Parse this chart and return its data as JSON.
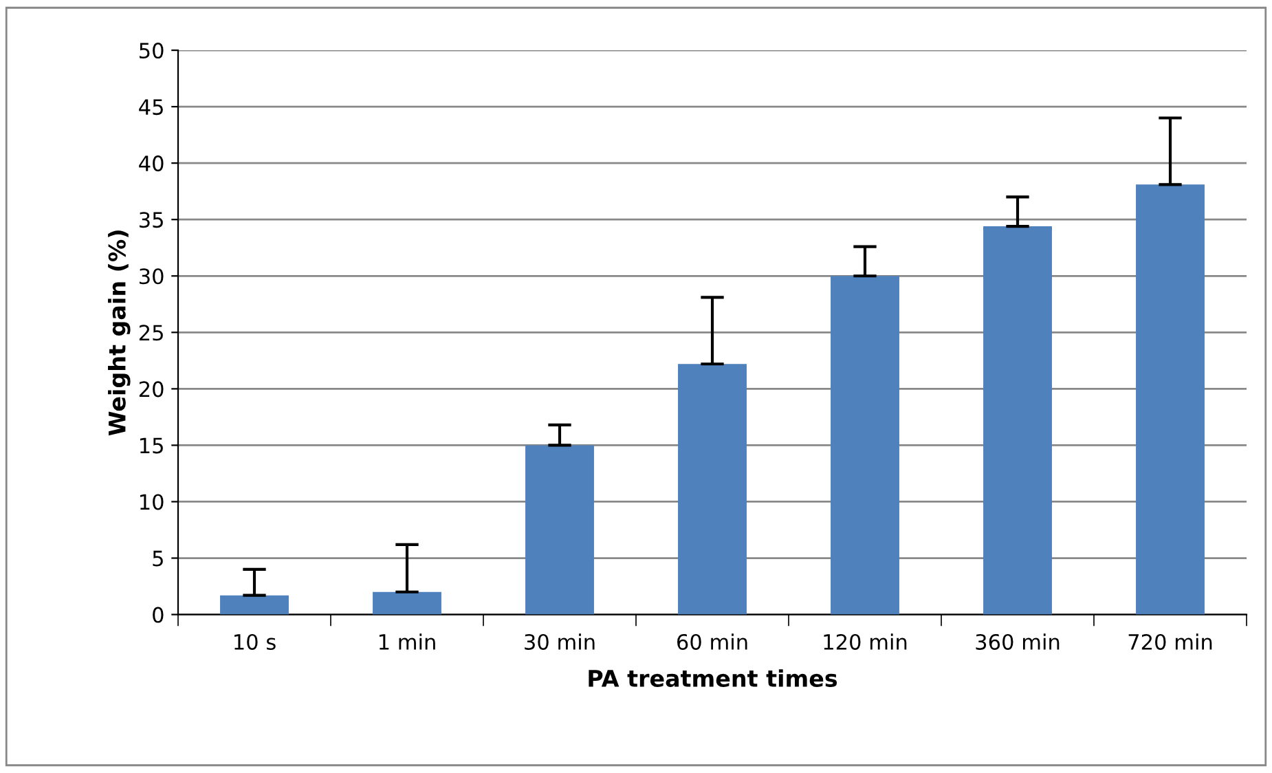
{
  "chart_data": {
    "type": "bar",
    "xlabel": "PA treatment times",
    "ylabel": "Weight gain (%)",
    "categories": [
      "10 s",
      "1 min",
      "30 min",
      "60 min",
      "120 min",
      "360 min",
      "720 min"
    ],
    "values": [
      1.7,
      2.0,
      15.0,
      22.2,
      30.0,
      34.4,
      38.1
    ],
    "errors": [
      [
        1.7,
        4.0
      ],
      [
        2.0,
        6.2
      ],
      [
        15.0,
        16.8
      ],
      [
        22.2,
        28.1
      ],
      [
        30.0,
        32.6
      ],
      [
        34.4,
        37.0
      ],
      [
        38.1,
        44.0
      ]
    ],
    "color": "#4f81bd",
    "ylim": [
      0,
      50
    ],
    "yticks": [
      0,
      5,
      10,
      15,
      20,
      25,
      30,
      35,
      40,
      45,
      50
    ],
    "grid": "y"
  }
}
